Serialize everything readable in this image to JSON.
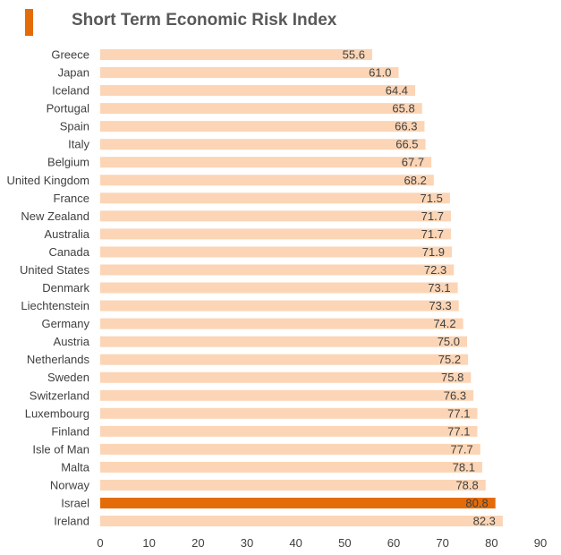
{
  "chart_data": {
    "type": "bar",
    "orientation": "horizontal",
    "title": "Short Term Economic Risk Index",
    "categories": [
      "Greece",
      "Japan",
      "Iceland",
      "Portugal",
      "Spain",
      "Italy",
      "Belgium",
      "United Kingdom",
      "France",
      "New Zealand",
      "Australia",
      "Canada",
      "United States",
      "Denmark",
      "Liechtenstein",
      "Germany",
      "Austria",
      "Netherlands",
      "Sweden",
      "Switzerland",
      "Luxembourg",
      "Finland",
      "Isle of Man",
      "Malta",
      "Norway",
      "Israel",
      "Ireland"
    ],
    "values": [
      55.6,
      61.0,
      64.4,
      65.8,
      66.3,
      66.5,
      67.7,
      68.2,
      71.5,
      71.7,
      71.7,
      71.9,
      72.3,
      73.1,
      73.3,
      74.2,
      75.0,
      75.2,
      75.8,
      76.3,
      77.1,
      77.1,
      77.7,
      78.1,
      78.8,
      80.8,
      82.3
    ],
    "value_labels": [
      "55.6",
      "61.0",
      "64.4",
      "65.8",
      "66.3",
      "66.5",
      "67.7",
      "68.2",
      "71.5",
      "71.7",
      "71.7",
      "71.9",
      "72.3",
      "73.1",
      "73.3",
      "74.2",
      "75.0",
      "75.2",
      "75.8",
      "76.3",
      "77.1",
      "77.1",
      "77.7",
      "78.1",
      "78.8",
      "80.8",
      "82.3"
    ],
    "highlight": "Israel",
    "xlim": [
      0,
      90
    ],
    "xticks": [
      "0",
      "10",
      "20",
      "30",
      "40",
      "50",
      "60",
      "70",
      "80",
      "90"
    ],
    "grid": false,
    "xlabel": "",
    "ylabel": ""
  },
  "colors": {
    "bar": "#FBD5B5",
    "highlight": "#E36C09",
    "accent": "#E36C09",
    "text": "#404040",
    "title": "#595959"
  }
}
